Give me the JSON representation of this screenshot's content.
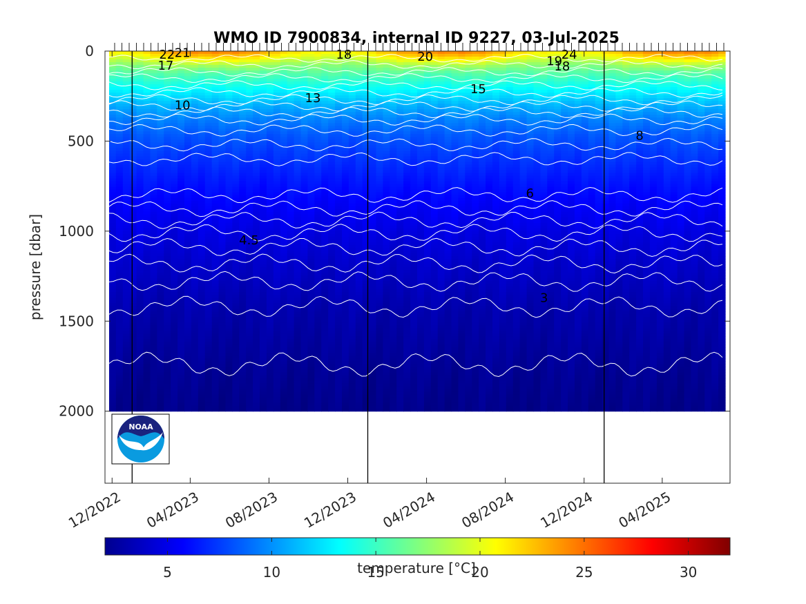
{
  "chart_data": {
    "type": "heatmap",
    "title": "WMO ID 7900834, internal ID 9227, 03-Jul-2025",
    "ylabel": "pressure [dbar]",
    "xlabel": "",
    "y_reversed": true,
    "ylim": [
      0,
      2400
    ],
    "yticks": [
      0,
      500,
      1000,
      1500,
      2000
    ],
    "ytick_labels": [
      "0",
      "500",
      "1000",
      "1500",
      "2000"
    ],
    "xlim": [
      "2022-11-20",
      "2025-07-15"
    ],
    "xticks": [
      "2022-12-01",
      "2023-04-01",
      "2023-08-01",
      "2023-12-01",
      "2024-04-01",
      "2024-08-01",
      "2024-12-01",
      "2025-04-01"
    ],
    "xtick_labels": [
      "12/2022",
      "04/2023",
      "08/2023",
      "12/2023",
      "04/2024",
      "08/2024",
      "12/2024",
      "04/2025"
    ],
    "year_boundaries": [
      "2023-01-01",
      "2024-01-01",
      "2025-01-01"
    ],
    "max_pressure": 2000,
    "colorbar": {
      "label": "temperature [°C]",
      "range": [
        2,
        32
      ],
      "ticks": [
        5,
        10,
        15,
        20,
        25,
        30
      ],
      "tick_labels": [
        "5",
        "10",
        "15",
        "20",
        "25",
        "30"
      ],
      "colormap": "jet"
    },
    "contour_labels": [
      {
        "text": "22",
        "date": "2023-02-24",
        "pressure": 20
      },
      {
        "text": "21",
        "date": "2023-03-20",
        "pressure": 10
      },
      {
        "text": "17",
        "date": "2023-02-22",
        "pressure": 80
      },
      {
        "text": "18",
        "date": "2023-11-25",
        "pressure": 20
      },
      {
        "text": "20",
        "date": "2024-03-30",
        "pressure": 30
      },
      {
        "text": "19",
        "date": "2024-10-16",
        "pressure": 55
      },
      {
        "text": "24",
        "date": "2024-11-08",
        "pressure": 20
      },
      {
        "text": "18",
        "date": "2024-10-28",
        "pressure": 85
      },
      {
        "text": "10",
        "date": "2023-03-20",
        "pressure": 300
      },
      {
        "text": "13",
        "date": "2023-10-08",
        "pressure": 260
      },
      {
        "text": "15",
        "date": "2024-06-20",
        "pressure": 210
      },
      {
        "text": "8",
        "date": "2025-02-25",
        "pressure": 470
      },
      {
        "text": "6",
        "date": "2024-09-08",
        "pressure": 790
      },
      {
        "text": "4.5",
        "date": "2023-07-01",
        "pressure": 1050
      },
      {
        "text": "3",
        "date": "2024-09-30",
        "pressure": 1370
      }
    ]
  },
  "logo": {
    "text": "NOAA"
  }
}
